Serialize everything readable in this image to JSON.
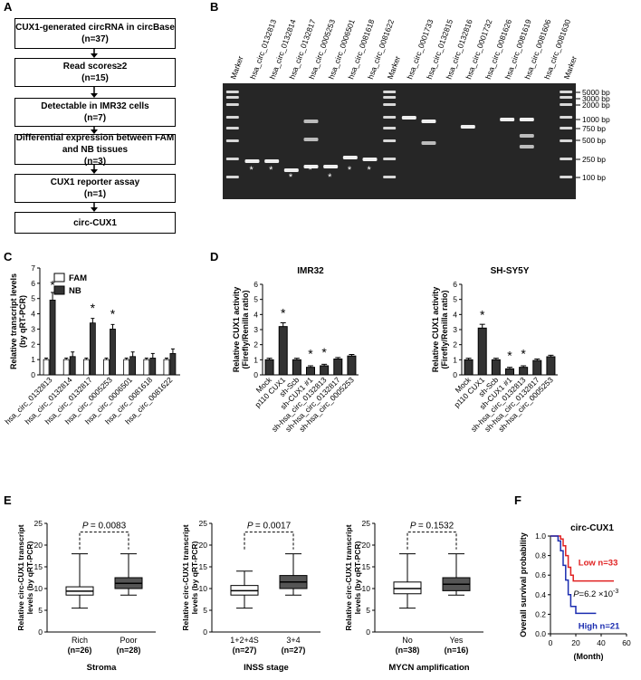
{
  "panels": {
    "A": "A",
    "B": "B",
    "C": "C",
    "D": "D",
    "E": "E",
    "F": "F"
  },
  "flow": [
    {
      "title": "CUX1-generated circRNA in circBase",
      "n": "(n=37)"
    },
    {
      "title": "Read scores≥2",
      "n": "(n=15)"
    },
    {
      "title": "Detectable in IMR32 cells",
      "n": "(n=7)"
    },
    {
      "title": "Differential expression between FAM and NB tissues",
      "n": "(n=3)"
    },
    {
      "title": "CUX1 reporter assay",
      "n": "(n=1)"
    },
    {
      "title": "circ-CUX1",
      "n": ""
    }
  ],
  "gel": {
    "lanes": [
      "Marker",
      "hsa_circ_0132813",
      "hsa_circ_0132814",
      "hsa_circ_0132817",
      "hsa_circ_0005253",
      "hsa_circ_0006501",
      "hsa_circ_0081618",
      "hsa_circ_0081622",
      "Marker",
      "hsa_circ_0001733",
      "hsa_circ_0132815",
      "hsa_circ_0132816",
      "hsa_circ_0001732",
      "hsa_circ_0081626",
      "hsa_circ_0081619",
      "hsa_circ_0081606",
      "hsa_circ_0081630",
      "Marker"
    ],
    "sizes": [
      "5000 bp",
      "3000 bp",
      "2000 bp",
      "1000 bp",
      "750 bp",
      "500 bp",
      "250 bp",
      "100 bp"
    ]
  },
  "chart_data": [
    {
      "type": "bar",
      "panel": "C",
      "ylabel": "Relative transcript levels (by qRT-PCR)",
      "ylim": [
        0,
        7
      ],
      "yticks": [
        0,
        1,
        2,
        3,
        4,
        5,
        6,
        7
      ],
      "categories": [
        "hsa_circ_0132813",
        "hsa_circ_0132814",
        "hsa_circ_0132817",
        "hsa_circ_0005253",
        "hsa_circ_0006501",
        "hsa_circ_0081618",
        "hsa_circ_0081622"
      ],
      "series": [
        {
          "name": "FAM",
          "color": "#ffffff",
          "values": [
            1.0,
            1.0,
            1.0,
            1.0,
            1.0,
            1.0,
            1.0
          ]
        },
        {
          "name": "NB",
          "color": "#333333",
          "values": [
            4.9,
            1.2,
            3.4,
            3.0,
            1.2,
            1.1,
            1.4
          ]
        }
      ],
      "significance": [
        true,
        false,
        true,
        true,
        false,
        false,
        false
      ],
      "star": "*"
    },
    {
      "type": "bar",
      "panel": "D",
      "title": "IMR32",
      "ylabel": "Relative CUX1 activity (Firefly/Renilla ratio)",
      "ylim": [
        0,
        6
      ],
      "yticks": [
        0,
        1,
        2,
        3,
        4,
        5,
        6
      ],
      "categories": [
        "Mock",
        "p110 CUX1",
        "sh-Scb",
        "sh-CUX1 #1",
        "sh-hsa_circ_0132813",
        "sh-hsa_circ_0132817",
        "sh-hsa_circ_0005253"
      ],
      "series": [
        {
          "name": "",
          "values": [
            1.0,
            3.2,
            1.0,
            0.5,
            0.6,
            1.05,
            1.25
          ]
        }
      ],
      "significance": [
        false,
        true,
        false,
        true,
        true,
        false,
        false
      ],
      "star": "*"
    },
    {
      "type": "bar",
      "panel": "D",
      "title": "SH-SY5Y",
      "ylabel": "Relative CUX1 activity (Firefly/Renilla ratio)",
      "ylim": [
        0,
        6
      ],
      "yticks": [
        0,
        1,
        2,
        3,
        4,
        5,
        6
      ],
      "categories": [
        "Mock",
        "p110 CUX1",
        "sh-Scb",
        "sh-CUX1 #1",
        "sh-hsa_circ_0132813",
        "sh-hsa_circ_0132817",
        "sh-hsa_circ_0005253"
      ],
      "series": [
        {
          "name": "",
          "values": [
            1.0,
            3.1,
            1.0,
            0.4,
            0.5,
            0.95,
            1.2
          ]
        }
      ],
      "significance": [
        false,
        true,
        false,
        true,
        true,
        false,
        false
      ],
      "star": "*"
    },
    {
      "type": "boxplot",
      "panel": "E",
      "ylabel": "Relative circ-CUX1 transcript levels (by qRT-PCR)",
      "xlabel": "Stroma",
      "ylim": [
        0,
        25
      ],
      "yticks": [
        0,
        5,
        10,
        15,
        20,
        25
      ],
      "p": "= 0.0083",
      "groups": [
        {
          "label": "Rich",
          "n": "(n=26)",
          "min": 5.5,
          "q1": 8.5,
          "median": 9.4,
          "q3": 10.4,
          "max": 18,
          "fill": "#ffffff"
        },
        {
          "label": "Poor",
          "n": "(n=28)",
          "min": 8.5,
          "q1": 10.0,
          "median": 11.2,
          "q3": 12.5,
          "max": 18,
          "fill": "#555555"
        }
      ]
    },
    {
      "type": "boxplot",
      "panel": "E",
      "ylabel": "Relative circ-CUX1 transcript levels (by qRT-PCR)",
      "xlabel": "INSS stage",
      "ylim": [
        0,
        25
      ],
      "yticks": [
        0,
        5,
        10,
        15,
        20,
        25
      ],
      "p": "= 0.0017",
      "groups": [
        {
          "label": "1+2+4S",
          "n": "(n=27)",
          "min": 5.5,
          "q1": 8.5,
          "median": 9.5,
          "q3": 10.7,
          "max": 14,
          "fill": "#ffffff"
        },
        {
          "label": "3+4",
          "n": "(n=27)",
          "min": 8.5,
          "q1": 10.0,
          "median": 11.5,
          "q3": 13.0,
          "max": 18,
          "fill": "#555555"
        }
      ]
    },
    {
      "type": "boxplot",
      "panel": "E",
      "ylabel": "Relative circ-CUX1 transcript levels (by qRT-PCR)",
      "xlabel": "MYCN amplification",
      "ylim": [
        0,
        25
      ],
      "yticks": [
        0,
        5,
        10,
        15,
        20,
        25
      ],
      "p": "= 0.1532",
      "groups": [
        {
          "label": "No",
          "n": "(n=38)",
          "min": 5.5,
          "q1": 8.8,
          "median": 10.0,
          "q3": 11.5,
          "max": 18,
          "fill": "#ffffff"
        },
        {
          "label": "Yes",
          "n": "(n=16)",
          "min": 8.5,
          "q1": 9.5,
          "median": 11.0,
          "q3": 12.5,
          "max": 18,
          "fill": "#555555"
        }
      ]
    },
    {
      "type": "line",
      "panel": "F",
      "title": "circ-CUX1",
      "xlabel": "(Month)",
      "ylabel": "Overall survival probability",
      "xlim": [
        0,
        60
      ],
      "ylim": [
        0,
        1.0
      ],
      "xticks": [
        0,
        20,
        40,
        60
      ],
      "yticks": [
        0,
        0.2,
        0.4,
        0.6,
        0.8,
        1.0
      ],
      "p_label": "=6.2 ×10",
      "p_exp": "-3",
      "series": [
        {
          "name": "Low n=33",
          "color": "#e02020",
          "x": [
            0,
            8,
            10,
            12,
            14,
            16,
            18,
            50
          ],
          "y": [
            1.0,
            0.97,
            0.9,
            0.8,
            0.68,
            0.6,
            0.54,
            0.54
          ]
        },
        {
          "name": "High n=21",
          "color": "#1b2db0",
          "x": [
            0,
            6,
            8,
            10,
            12,
            14,
            16,
            20,
            36
          ],
          "y": [
            1.0,
            0.95,
            0.85,
            0.7,
            0.55,
            0.4,
            0.28,
            0.21,
            0.21
          ]
        }
      ]
    }
  ]
}
